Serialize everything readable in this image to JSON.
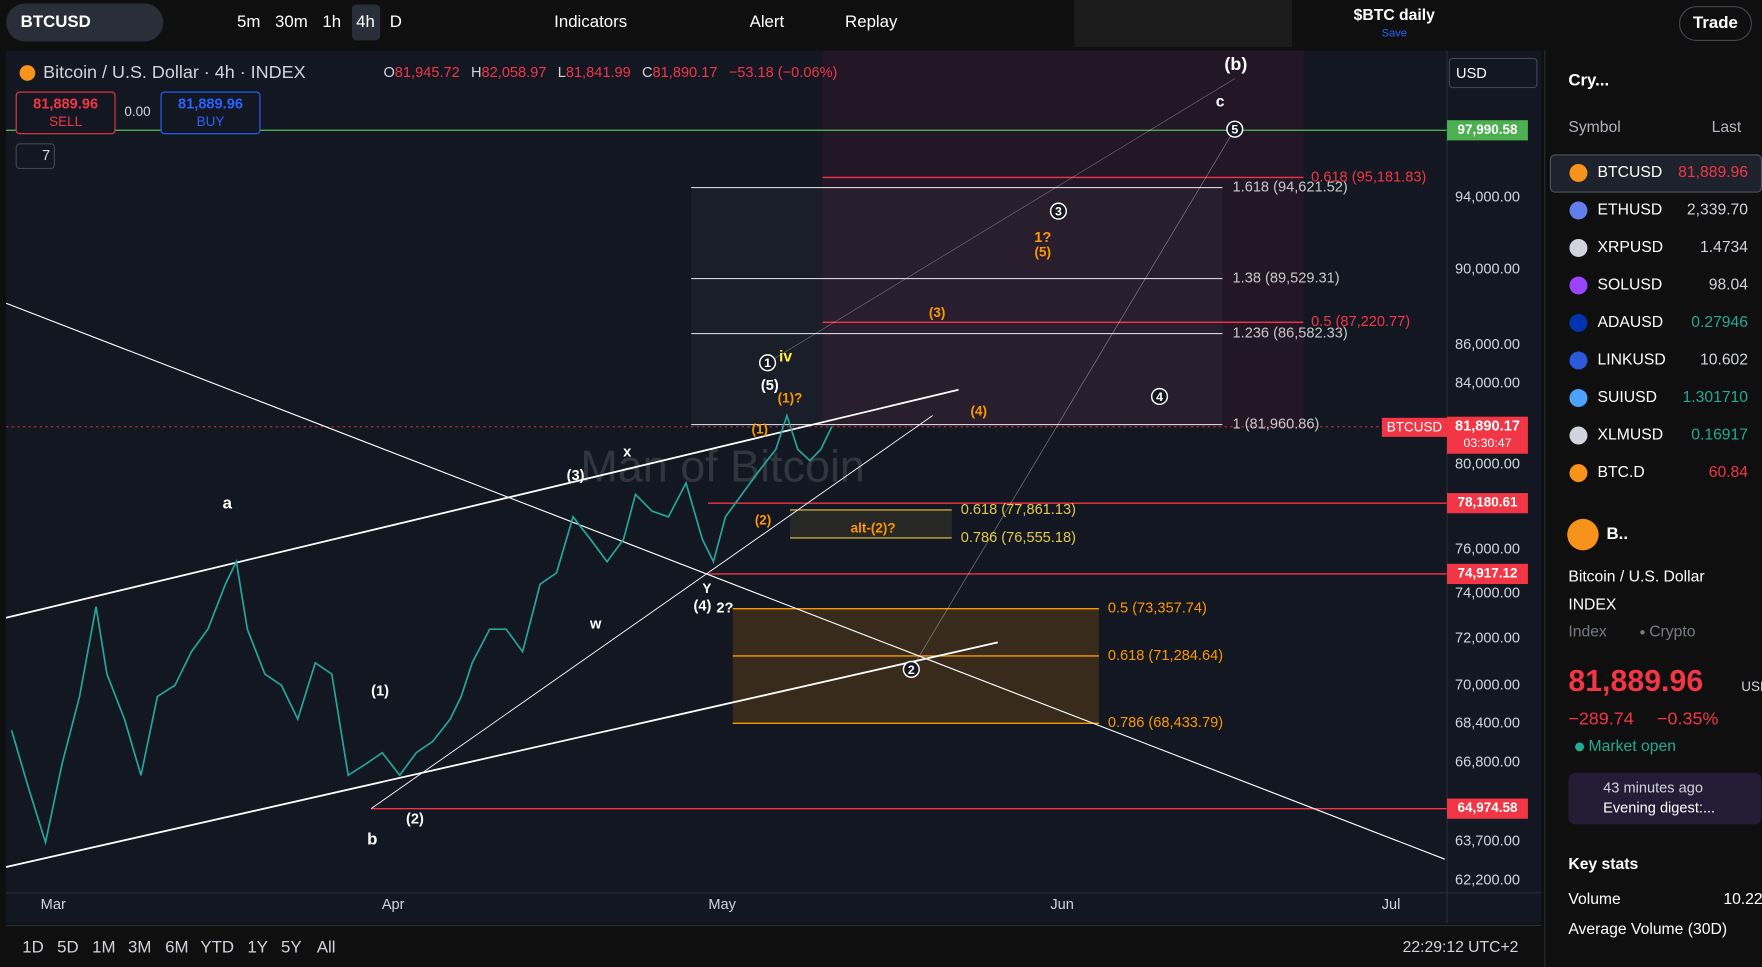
{
  "toolbar": {
    "symbol": "BTCUSD",
    "intervals": [
      "5m",
      "30m",
      "1h",
      "4h",
      "D"
    ],
    "indicators": "Indicators",
    "alert": "Alert",
    "replay": "Replay",
    "layout": "$BTC daily",
    "save": "Save",
    "trade": "Trade"
  },
  "legend": {
    "title": "Bitcoin / U.S. Dollar · 4h · INDEX",
    "ohlc": [
      {
        "key": "O",
        "value": "81,945.72"
      },
      {
        "key": "H",
        "value": "82,058.97"
      },
      {
        "key": "L",
        "value": "81,841.99"
      },
      {
        "key": "C",
        "value": "81,890.17"
      }
    ],
    "change": "−53.18 (−0.06%)",
    "sell_price": "81,889.96",
    "sell": "SELL",
    "spread": "0.00",
    "buy_price": "81,889.96",
    "buy": "BUY",
    "indicator_count": "7",
    "currency": "USD"
  },
  "watermark": "Man of Bitcoin",
  "chart_data": {
    "type": "line",
    "color": "#26a69a",
    "log_scale": true,
    "x": [
      -3.8,
      -2.3,
      -0.7,
      0.8,
      2.4,
      3.9,
      4.9,
      6.5,
      8.0,
      9.5,
      11.1,
      12.6,
      14.1,
      15.7,
      16.7,
      17.7,
      19.3,
      20.8,
      22.3,
      23.9,
      25.4,
      26.9,
      28.5,
      30.0,
      31.6,
      33.1,
      34.6,
      36.2,
      37.2,
      38.2,
      39.8,
      41.3,
      42.8,
      44.4,
      45.9,
      47.4,
      49.0,
      50.5,
      52.0,
      53.1,
      54.6,
      56.1,
      57.7,
      59.2,
      60.2,
      61.3,
      62.8,
      64.3,
      65.9,
      66.9,
      67.9,
      69.0,
      70.0,
      71.0
    ],
    "values": [
      68130,
      65860,
      63660,
      66750,
      69530,
      73410,
      70480,
      68590,
      66300,
      69530,
      70010,
      71440,
      72420,
      74420,
      75440,
      72420,
      70480,
      70010,
      68590,
      70960,
      70480,
      66300,
      66750,
      67210,
      66300,
      67210,
      67670,
      68590,
      69530,
      70960,
      72420,
      72420,
      71440,
      74420,
      74930,
      77510,
      76460,
      75440,
      76460,
      78570,
      77780,
      77510,
      79110,
      76460,
      75440,
      77510,
      78570,
      79650,
      80740,
      82400,
      80740,
      80190,
      80740,
      81850
    ],
    "xlim": [
      -4.3,
      126.9
    ],
    "xticks": [
      {
        "value": 0,
        "label": "Mar"
      },
      {
        "value": 31,
        "label": "Apr"
      },
      {
        "value": 61,
        "label": "May"
      },
      {
        "value": 92,
        "label": "Jun"
      },
      {
        "value": 122,
        "label": "Jul"
      }
    ],
    "ylim": [
      61750,
      102750
    ],
    "yticks": [
      {
        "value": 62200,
        "label": "62,200.00"
      },
      {
        "value": 63700,
        "label": "63,700.00"
      },
      {
        "value": 66800,
        "label": "66,800.00"
      },
      {
        "value": 68400,
        "label": "68,400.00"
      },
      {
        "value": 70000,
        "label": "70,000.00"
      },
      {
        "value": 72000,
        "label": "72,000.00"
      },
      {
        "value": 74000,
        "label": "74,000.00"
      },
      {
        "value": 76000,
        "label": "76,000.00"
      },
      {
        "value": 80000,
        "label": "80,000.00"
      },
      {
        "value": 84000,
        "label": "84,000.00"
      },
      {
        "value": 86000,
        "label": "86,000.00"
      },
      {
        "value": 90000,
        "label": "90,000.00"
      },
      {
        "value": 94000,
        "label": "94,000.00"
      }
    ]
  },
  "price_labels": {
    "target": "97,990.58",
    "level_1": "78,180.61",
    "level_2": "74,917.12",
    "level_3": "64,974.58",
    "symbol": "BTCUSD",
    "last": "81,890.17",
    "countdown": "03:30:47"
  },
  "fib_labels": [
    "1.618 (94,621.52)",
    "1.38 (89,529.31)",
    "1.236 (86,582.33)",
    "1 (81,960.86)",
    "0.618 (95,181.83)",
    "0.5 (87,220.77)",
    "0.618 (77,861.13)",
    "0.786 (76,555.18)",
    "0.5 (73,357.74)",
    "0.618 (71,284.64)",
    "0.786 (68,433.79)"
  ],
  "waves": [
    "(b)",
    "c",
    "a",
    "b",
    "w",
    "x",
    "Y",
    "(4)",
    "2?",
    "(3)",
    "(1)",
    "(2)",
    "(5)",
    "iv",
    "1?",
    "(5)",
    "(3)",
    "(4)",
    "(1)?",
    "(1)",
    "(2)",
    "alt-(2)?"
  ],
  "circled_waves": [
    "5",
    "3",
    "1",
    "4",
    "2"
  ],
  "watchlist": {
    "name": "Cry...",
    "columns": [
      "Symbol",
      "Last"
    ],
    "rows": [
      {
        "symbol": "BTCUSD",
        "last": "81,889.96"
      },
      {
        "symbol": "ETHUSD",
        "last": "2,339.70"
      },
      {
        "symbol": "XRPUSD",
        "last": "1.4734"
      },
      {
        "symbol": "SOLUSD",
        "last": "98.04"
      },
      {
        "symbol": "ADAUSD",
        "last": "0.27946"
      },
      {
        "symbol": "LINKUSD",
        "last": "10.602"
      },
      {
        "symbol": "SUIUSD",
        "last": "1.301710"
      },
      {
        "symbol": "XLMUSD",
        "last": "0.16917"
      },
      {
        "symbol": "BTC.D",
        "last": "60.84"
      }
    ]
  },
  "details": {
    "short": "B..",
    "name": "Bitcoin / U.S. Dollar",
    "exchange": "INDEX",
    "kind": "Index",
    "category": "Crypto",
    "price": "81,889.96",
    "currency": "USD",
    "change": "−289.74",
    "change_pct": "−0.35%",
    "status": "Market open",
    "news_time": "43 minutes ago",
    "news_title": "Evening digest:...",
    "key_stats": "Key stats",
    "volume_label": "Volume",
    "volume": "10.22",
    "avg_volume_label": "Average Volume (30D)"
  },
  "bottom_bar": {
    "ranges": [
      "1D",
      "5D",
      "1M",
      "3M",
      "6M",
      "YTD",
      "1Y",
      "5Y",
      "All"
    ],
    "time": "22:29:12 UTC+2"
  }
}
